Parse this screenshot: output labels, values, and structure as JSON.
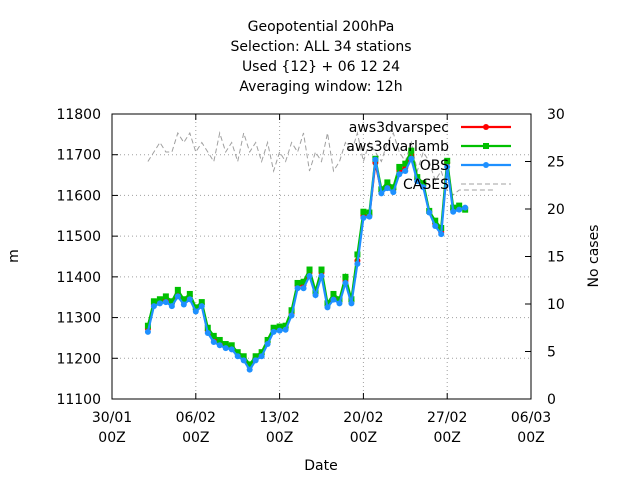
{
  "chart_data": {
    "type": "line",
    "title_lines": [
      "Geopotential 200hPa",
      "Selection: ALL      34 stations",
      "Used {12} + 06 12 24",
      "Averaging window: 12h"
    ],
    "xlabel": "Date",
    "ylabel": "m",
    "y2label": "No cases",
    "ylim": [
      11100,
      11800
    ],
    "y2lim": [
      0,
      30
    ],
    "xlim": [
      0,
      35
    ],
    "x_ticks": [
      {
        "x": 0,
        "line1": "30/01",
        "line2": "00Z"
      },
      {
        "x": 7,
        "line1": "06/02",
        "line2": "00Z"
      },
      {
        "x": 14,
        "line1": "13/02",
        "line2": "00Z"
      },
      {
        "x": 21,
        "line1": "20/02",
        "line2": "00Z"
      },
      {
        "x": 28,
        "line1": "27/02",
        "line2": "00Z"
      },
      {
        "x": 35,
        "line1": "06/03",
        "line2": "00Z"
      }
    ],
    "y_ticks": [
      11100,
      11200,
      11300,
      11400,
      11500,
      11600,
      11700,
      11800
    ],
    "y2_ticks": [
      0,
      5,
      10,
      15,
      20,
      25,
      30
    ],
    "grid": true,
    "legend_position": "top-right",
    "series": [
      {
        "name": "aws3dvarspec",
        "color": "#ff0000",
        "marker": "circle",
        "x": [
          3,
          3.5,
          4,
          4.5,
          5,
          5.5,
          6,
          6.5,
          7,
          7.5,
          8,
          8.5,
          9,
          9.5,
          10,
          10.5,
          11,
          11.5,
          12,
          12.5,
          13,
          13.5,
          14,
          14.5,
          15,
          15.5,
          16,
          16.5,
          17,
          17.5,
          18,
          18.5,
          19,
          19.5,
          20,
          20.5,
          21,
          21.5,
          22,
          22.5,
          23,
          23.5,
          24,
          24.5,
          25,
          25.5,
          26,
          26.5,
          27,
          27.5,
          28,
          28.5,
          29,
          29.5
        ],
        "y": [
          11272,
          11332,
          11340,
          11345,
          11335,
          11360,
          11340,
          11352,
          11320,
          11333,
          11268,
          11248,
          11240,
          11230,
          11228,
          11212,
          11200,
          11180,
          11200,
          11210,
          11240,
          11270,
          11272,
          11275,
          11310,
          11378,
          11380,
          11410,
          11360,
          11410,
          11330,
          11350,
          11340,
          11390,
          11340,
          11440,
          11550,
          11552,
          11680,
          11610,
          11625,
          11615,
          11660,
          11668,
          11700,
          11640,
          11625,
          11560,
          11530,
          11510,
          11680,
          11565,
          11570,
          11568
        ]
      },
      {
        "name": "aws3dvarlamb",
        "color": "#00c000",
        "marker": "square",
        "x": [
          3,
          3.5,
          4,
          4.5,
          5,
          5.5,
          6,
          6.5,
          7,
          7.5,
          8,
          8.5,
          9,
          9.5,
          10,
          10.5,
          11,
          11.5,
          12,
          12.5,
          13,
          13.5,
          14,
          14.5,
          15,
          15.5,
          16,
          16.5,
          17,
          17.5,
          18,
          18.5,
          19,
          19.5,
          20,
          20.5,
          21,
          21.5,
          22,
          22.5,
          23,
          23.5,
          24,
          24.5,
          25,
          25.5,
          26,
          26.5,
          27,
          27.5,
          28,
          28.5,
          29,
          29.5
        ],
        "y": [
          11280,
          11340,
          11345,
          11352,
          11340,
          11368,
          11345,
          11358,
          11325,
          11338,
          11275,
          11255,
          11245,
          11235,
          11232,
          11215,
          11205,
          11185,
          11205,
          11215,
          11245,
          11275,
          11278,
          11280,
          11318,
          11385,
          11388,
          11418,
          11365,
          11418,
          11335,
          11358,
          11345,
          11400,
          11345,
          11455,
          11560,
          11558,
          11690,
          11615,
          11632,
          11620,
          11670,
          11678,
          11710,
          11645,
          11630,
          11562,
          11538,
          11520,
          11685,
          11570,
          11575,
          11565
        ]
      },
      {
        "name": "OBS",
        "color": "#1e90ff",
        "marker": "circle",
        "x": [
          3,
          3.5,
          4,
          4.5,
          5,
          5.5,
          6,
          6.5,
          7,
          7.5,
          8,
          8.5,
          9,
          9.5,
          10,
          10.5,
          11,
          11.5,
          12,
          12.5,
          13,
          13.5,
          14,
          14.5,
          15,
          15.5,
          16,
          16.5,
          17,
          17.5,
          18,
          18.5,
          19,
          19.5,
          20,
          20.5,
          21,
          21.5,
          22,
          22.5,
          23,
          23.5,
          24,
          24.5,
          25,
          25.5,
          26,
          26.5,
          27,
          27.5,
          28,
          28.5,
          29,
          29.5
        ],
        "y": [
          11265,
          11328,
          11335,
          11338,
          11328,
          11352,
          11332,
          11345,
          11315,
          11328,
          11262,
          11240,
          11232,
          11225,
          11222,
          11205,
          11195,
          11172,
          11195,
          11205,
          11235,
          11265,
          11268,
          11270,
          11305,
          11372,
          11372,
          11402,
          11355,
          11402,
          11325,
          11344,
          11335,
          11385,
          11335,
          11432,
          11545,
          11548,
          11688,
          11605,
          11618,
          11608,
          11652,
          11660,
          11690,
          11635,
          11620,
          11558,
          11525,
          11505,
          11670,
          11560,
          11565,
          11570
        ]
      },
      {
        "name": "CASES",
        "color": "#a0a0a0",
        "dashed": true,
        "axis": "y2",
        "x": [
          3,
          3.5,
          4,
          4.5,
          5,
          5.5,
          6,
          6.5,
          7,
          7.5,
          8,
          8.5,
          9,
          9.5,
          10,
          10.5,
          11,
          11.5,
          12,
          12.5,
          13,
          13.5,
          14,
          14.5,
          15,
          15.5,
          16,
          16.5,
          17,
          17.5,
          18,
          18.5,
          19,
          19.5,
          20,
          20.5,
          21,
          21.5,
          22,
          22.5,
          23,
          23.5,
          24,
          24.5,
          25,
          25.5,
          26,
          26.5,
          27,
          27.5,
          28,
          28.5,
          29,
          29.5,
          30,
          30.5,
          31,
          31.5,
          32
        ],
        "y": [
          25,
          26,
          27,
          26,
          26,
          28,
          27,
          28,
          26,
          27,
          26,
          25,
          28,
          26,
          27,
          25,
          28,
          26,
          27,
          25,
          27,
          24,
          26,
          25,
          27,
          26,
          28,
          24,
          26,
          25,
          28,
          24,
          25,
          27,
          26,
          28,
          25,
          27,
          26,
          25,
          27,
          28,
          26,
          25,
          27,
          24,
          26,
          25,
          23,
          24,
          22,
          21.5,
          22,
          22,
          22,
          22,
          22,
          22,
          22
        ]
      }
    ]
  }
}
